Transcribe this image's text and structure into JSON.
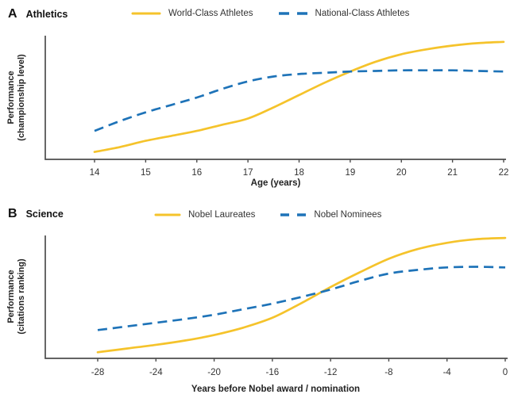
{
  "colors": {
    "series1": "#F5C32B",
    "series2": "#1E73B8",
    "axis": "#4d4d4d",
    "tick_text": "#333333",
    "label_text": "#1a1a1a",
    "background": "#ffffff"
  },
  "chart_data": [
    {
      "panel_letter": "A",
      "title": "Athletics",
      "type": "line",
      "xlabel": "Age (years)",
      "ylabel": "Performance (championship level)",
      "ylabel_lines": [
        "Performance",
        "(championship level)"
      ],
      "x_ticks": [
        14,
        15,
        16,
        17,
        18,
        19,
        20,
        21,
        22
      ],
      "y_ticks": [],
      "xlim": [
        14,
        22
      ],
      "ylim": [
        0,
        1
      ],
      "grid": false,
      "legend_position": "top-center",
      "series": [
        {
          "name": "World-Class Athletes",
          "style": "solid",
          "color_key": "series1",
          "x": [
            14,
            14.5,
            15,
            15.5,
            16,
            16.5,
            17,
            17.5,
            18,
            18.5,
            19,
            19.5,
            20,
            20.5,
            21,
            21.5,
            22
          ],
          "y": [
            0.06,
            0.1,
            0.15,
            0.19,
            0.23,
            0.28,
            0.33,
            0.42,
            0.52,
            0.62,
            0.71,
            0.79,
            0.85,
            0.89,
            0.92,
            0.94,
            0.95
          ]
        },
        {
          "name": "National-Class Athletes",
          "style": "dashed",
          "color_key": "series2",
          "x": [
            14,
            14.5,
            15,
            15.5,
            16,
            16.5,
            17,
            17.5,
            18,
            18.5,
            19,
            19.5,
            20,
            20.5,
            21,
            21.5,
            22
          ],
          "y": [
            0.23,
            0.31,
            0.38,
            0.44,
            0.5,
            0.57,
            0.63,
            0.67,
            0.69,
            0.7,
            0.71,
            0.715,
            0.72,
            0.72,
            0.72,
            0.715,
            0.71
          ]
        }
      ],
      "crossover_x": 18.9
    },
    {
      "panel_letter": "B",
      "title": "Science",
      "type": "line",
      "xlabel": "Years before Nobel award / nomination",
      "ylabel": "Performance (citations ranking)",
      "ylabel_lines": [
        "Performance",
        "(citations ranking)"
      ],
      "x_ticks": [
        -28,
        -24,
        -20,
        -16,
        -12,
        -8,
        -4,
        0
      ],
      "y_ticks": [],
      "xlim": [
        -28,
        0
      ],
      "ylim": [
        0,
        1
      ],
      "grid": false,
      "legend_position": "top-center",
      "series": [
        {
          "name": "Nobel Laureates",
          "style": "solid",
          "color_key": "series1",
          "x": [
            -28,
            -26,
            -24,
            -22,
            -20,
            -18,
            -16,
            -14,
            -12,
            -10,
            -8,
            -6,
            -4,
            -2,
            0
          ],
          "y": [
            0.05,
            0.08,
            0.11,
            0.145,
            0.19,
            0.25,
            0.33,
            0.45,
            0.58,
            0.7,
            0.81,
            0.89,
            0.94,
            0.97,
            0.98
          ]
        },
        {
          "name": "Nobel Nominees",
          "style": "dashed",
          "color_key": "series2",
          "x": [
            -28,
            -26,
            -24,
            -22,
            -20,
            -18,
            -16,
            -14,
            -12,
            -10,
            -8,
            -6,
            -4,
            -2,
            0
          ],
          "y": [
            0.23,
            0.26,
            0.29,
            0.32,
            0.355,
            0.4,
            0.445,
            0.5,
            0.56,
            0.63,
            0.69,
            0.72,
            0.74,
            0.745,
            0.74
          ]
        }
      ],
      "crossover_x": -12.6
    }
  ]
}
